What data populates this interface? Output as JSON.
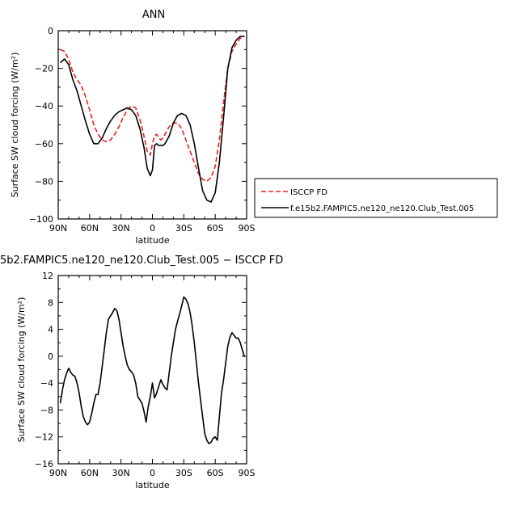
{
  "chart_data": [
    {
      "type": "line",
      "title": "ANN",
      "xlabel": "latitude",
      "ylabel": "Surface SW cloud forcing (W/m²)",
      "x_ticks": [
        90,
        60,
        30,
        0,
        -30,
        -60,
        -90
      ],
      "x_tick_labels": [
        "90N",
        "60N",
        "30N",
        "0",
        "30S",
        "60S",
        "90S"
      ],
      "xlim": [
        90,
        -90
      ],
      "ylim": [
        -100,
        0
      ],
      "y_ticks": [
        0,
        -20,
        -40,
        -60,
        -80,
        -100
      ],
      "y_tick_labels": [
        "0",
        "−20",
        "−40",
        "−60",
        "−80",
        "−100"
      ],
      "grid": false,
      "legend_position": "right",
      "series": [
        {
          "name": "ISCCP FD",
          "color": "#e8231f",
          "dash": true,
          "x": [
            88,
            84,
            80,
            76,
            72,
            68,
            64,
            60,
            56,
            52,
            48,
            44,
            40,
            36,
            32,
            28,
            24,
            20,
            16,
            12,
            8,
            5,
            2,
            0,
            -2,
            -4,
            -6,
            -8,
            -10,
            -12,
            -16,
            -20,
            -24,
            -28,
            -32,
            -36,
            -40,
            -44,
            -48,
            -52,
            -56,
            -60,
            -64,
            -68,
            -72,
            -76,
            -80,
            -84,
            -88
          ],
          "y": [
            -10,
            -11,
            -15,
            -22,
            -26,
            -29,
            -35,
            -42,
            -50,
            -55,
            -58,
            -59,
            -58,
            -55,
            -51,
            -46,
            -42,
            -40,
            -41,
            -47,
            -56,
            -64,
            -66,
            -60,
            -56,
            -55,
            -57,
            -58,
            -57,
            -55,
            -51,
            -49,
            -49,
            -52,
            -58,
            -64,
            -70,
            -76,
            -79,
            -80,
            -78,
            -72,
            -58,
            -38,
            -20,
            -11,
            -7,
            -4,
            -3
          ]
        },
        {
          "name": "f.e15b2.FAMPIC5.ne120_ne120.Club_Test.005",
          "color": "#000000",
          "dash": false,
          "x": [
            88,
            84,
            80,
            76,
            72,
            68,
            64,
            60,
            56,
            52,
            48,
            44,
            40,
            36,
            32,
            28,
            24,
            20,
            16,
            12,
            8,
            5,
            2,
            0,
            -2,
            -4,
            -6,
            -8,
            -10,
            -12,
            -16,
            -20,
            -24,
            -28,
            -32,
            -36,
            -40,
            -44,
            -48,
            -52,
            -56,
            -60,
            -64,
            -68,
            -72,
            -76,
            -80,
            -84,
            -88
          ],
          "y": [
            -17,
            -15,
            -18,
            -26,
            -32,
            -40,
            -48,
            -55,
            -60,
            -60,
            -57,
            -52,
            -48,
            -45,
            -43,
            -42,
            -41,
            -42,
            -45,
            -52,
            -62,
            -73,
            -77,
            -74,
            -61,
            -60,
            -61,
            -61,
            -61,
            -60,
            -56,
            -49,
            -45,
            -44,
            -45,
            -50,
            -60,
            -73,
            -85,
            -90,
            -91,
            -86,
            -70,
            -46,
            -20,
            -9,
            -5,
            -3,
            -3
          ]
        }
      ]
    },
    {
      "type": "line",
      "title": "5b2.FAMPIC5.ne120_ne120.Club_Test.005 − ISCCP FD",
      "xlabel": "latitude",
      "ylabel": "Surface SW cloud forcing (W/m²)",
      "x_ticks": [
        90,
        60,
        30,
        0,
        -30,
        -60,
        -90
      ],
      "x_tick_labels": [
        "90N",
        "60N",
        "30N",
        "0",
        "30S",
        "60S",
        "90S"
      ],
      "xlim": [
        90,
        -90
      ],
      "ylim": [
        -16,
        12
      ],
      "y_ticks": [
        12,
        8,
        4,
        0,
        -4,
        -8,
        -12,
        -16
      ],
      "y_tick_labels": [
        "12",
        "8",
        "4",
        "0",
        "−4",
        "−8",
        "−12",
        "−16"
      ],
      "grid": false,
      "series": [
        {
          "color": "#000000",
          "dash": false,
          "x": [
            88,
            86,
            84,
            82,
            80,
            78,
            76,
            74,
            72,
            70,
            68,
            66,
            64,
            62,
            60,
            58,
            56,
            54,
            52,
            50,
            48,
            46,
            44,
            42,
            40,
            38,
            36,
            34,
            32,
            30,
            28,
            26,
            24,
            22,
            20,
            18,
            16,
            14,
            12,
            10,
            8,
            6,
            4,
            2,
            0,
            -2,
            -4,
            -6,
            -8,
            -10,
            -12,
            -14,
            -16,
            -18,
            -20,
            -22,
            -24,
            -26,
            -28,
            -30,
            -32,
            -34,
            -36,
            -38,
            -40,
            -42,
            -44,
            -46,
            -48,
            -50,
            -52,
            -54,
            -56,
            -58,
            -60,
            -62,
            -64,
            -66,
            -68,
            -70,
            -72,
            -74,
            -76,
            -78,
            -80,
            -82,
            -84,
            -86,
            -88
          ],
          "y": [
            -7.0,
            -5.0,
            -3.5,
            -2.5,
            -1.8,
            -2.4,
            -2.8,
            -3.0,
            -4.0,
            -5.5,
            -7.5,
            -9.0,
            -9.8,
            -10.2,
            -9.8,
            -8.5,
            -7.0,
            -5.7,
            -5.7,
            -4.0,
            -1.5,
            1.0,
            3.5,
            5.5,
            6.0,
            6.5,
            7.1,
            6.8,
            5.5,
            3.5,
            1.5,
            0.0,
            -1.3,
            -2.0,
            -2.3,
            -2.8,
            -4.0,
            -6.0,
            -6.5,
            -7.0,
            -8.2,
            -9.8,
            -7.5,
            -6.0,
            -4.0,
            -6.2,
            -5.5,
            -4.5,
            -3.5,
            -4.2,
            -4.7,
            -5.0,
            -2.5,
            0.0,
            2.0,
            4.0,
            5.2,
            6.3,
            7.5,
            8.8,
            8.5,
            7.8,
            6.5,
            4.5,
            2.0,
            -1.0,
            -4.0,
            -6.5,
            -9.0,
            -11.5,
            -12.5,
            -13.0,
            -12.8,
            -12.2,
            -12.0,
            -12.5,
            -9.0,
            -5.5,
            -3.5,
            -1.0,
            1.5,
            2.8,
            3.5,
            3.1,
            2.7,
            2.7,
            2.0,
            0.9,
            -0.1
          ]
        }
      ]
    }
  ]
}
